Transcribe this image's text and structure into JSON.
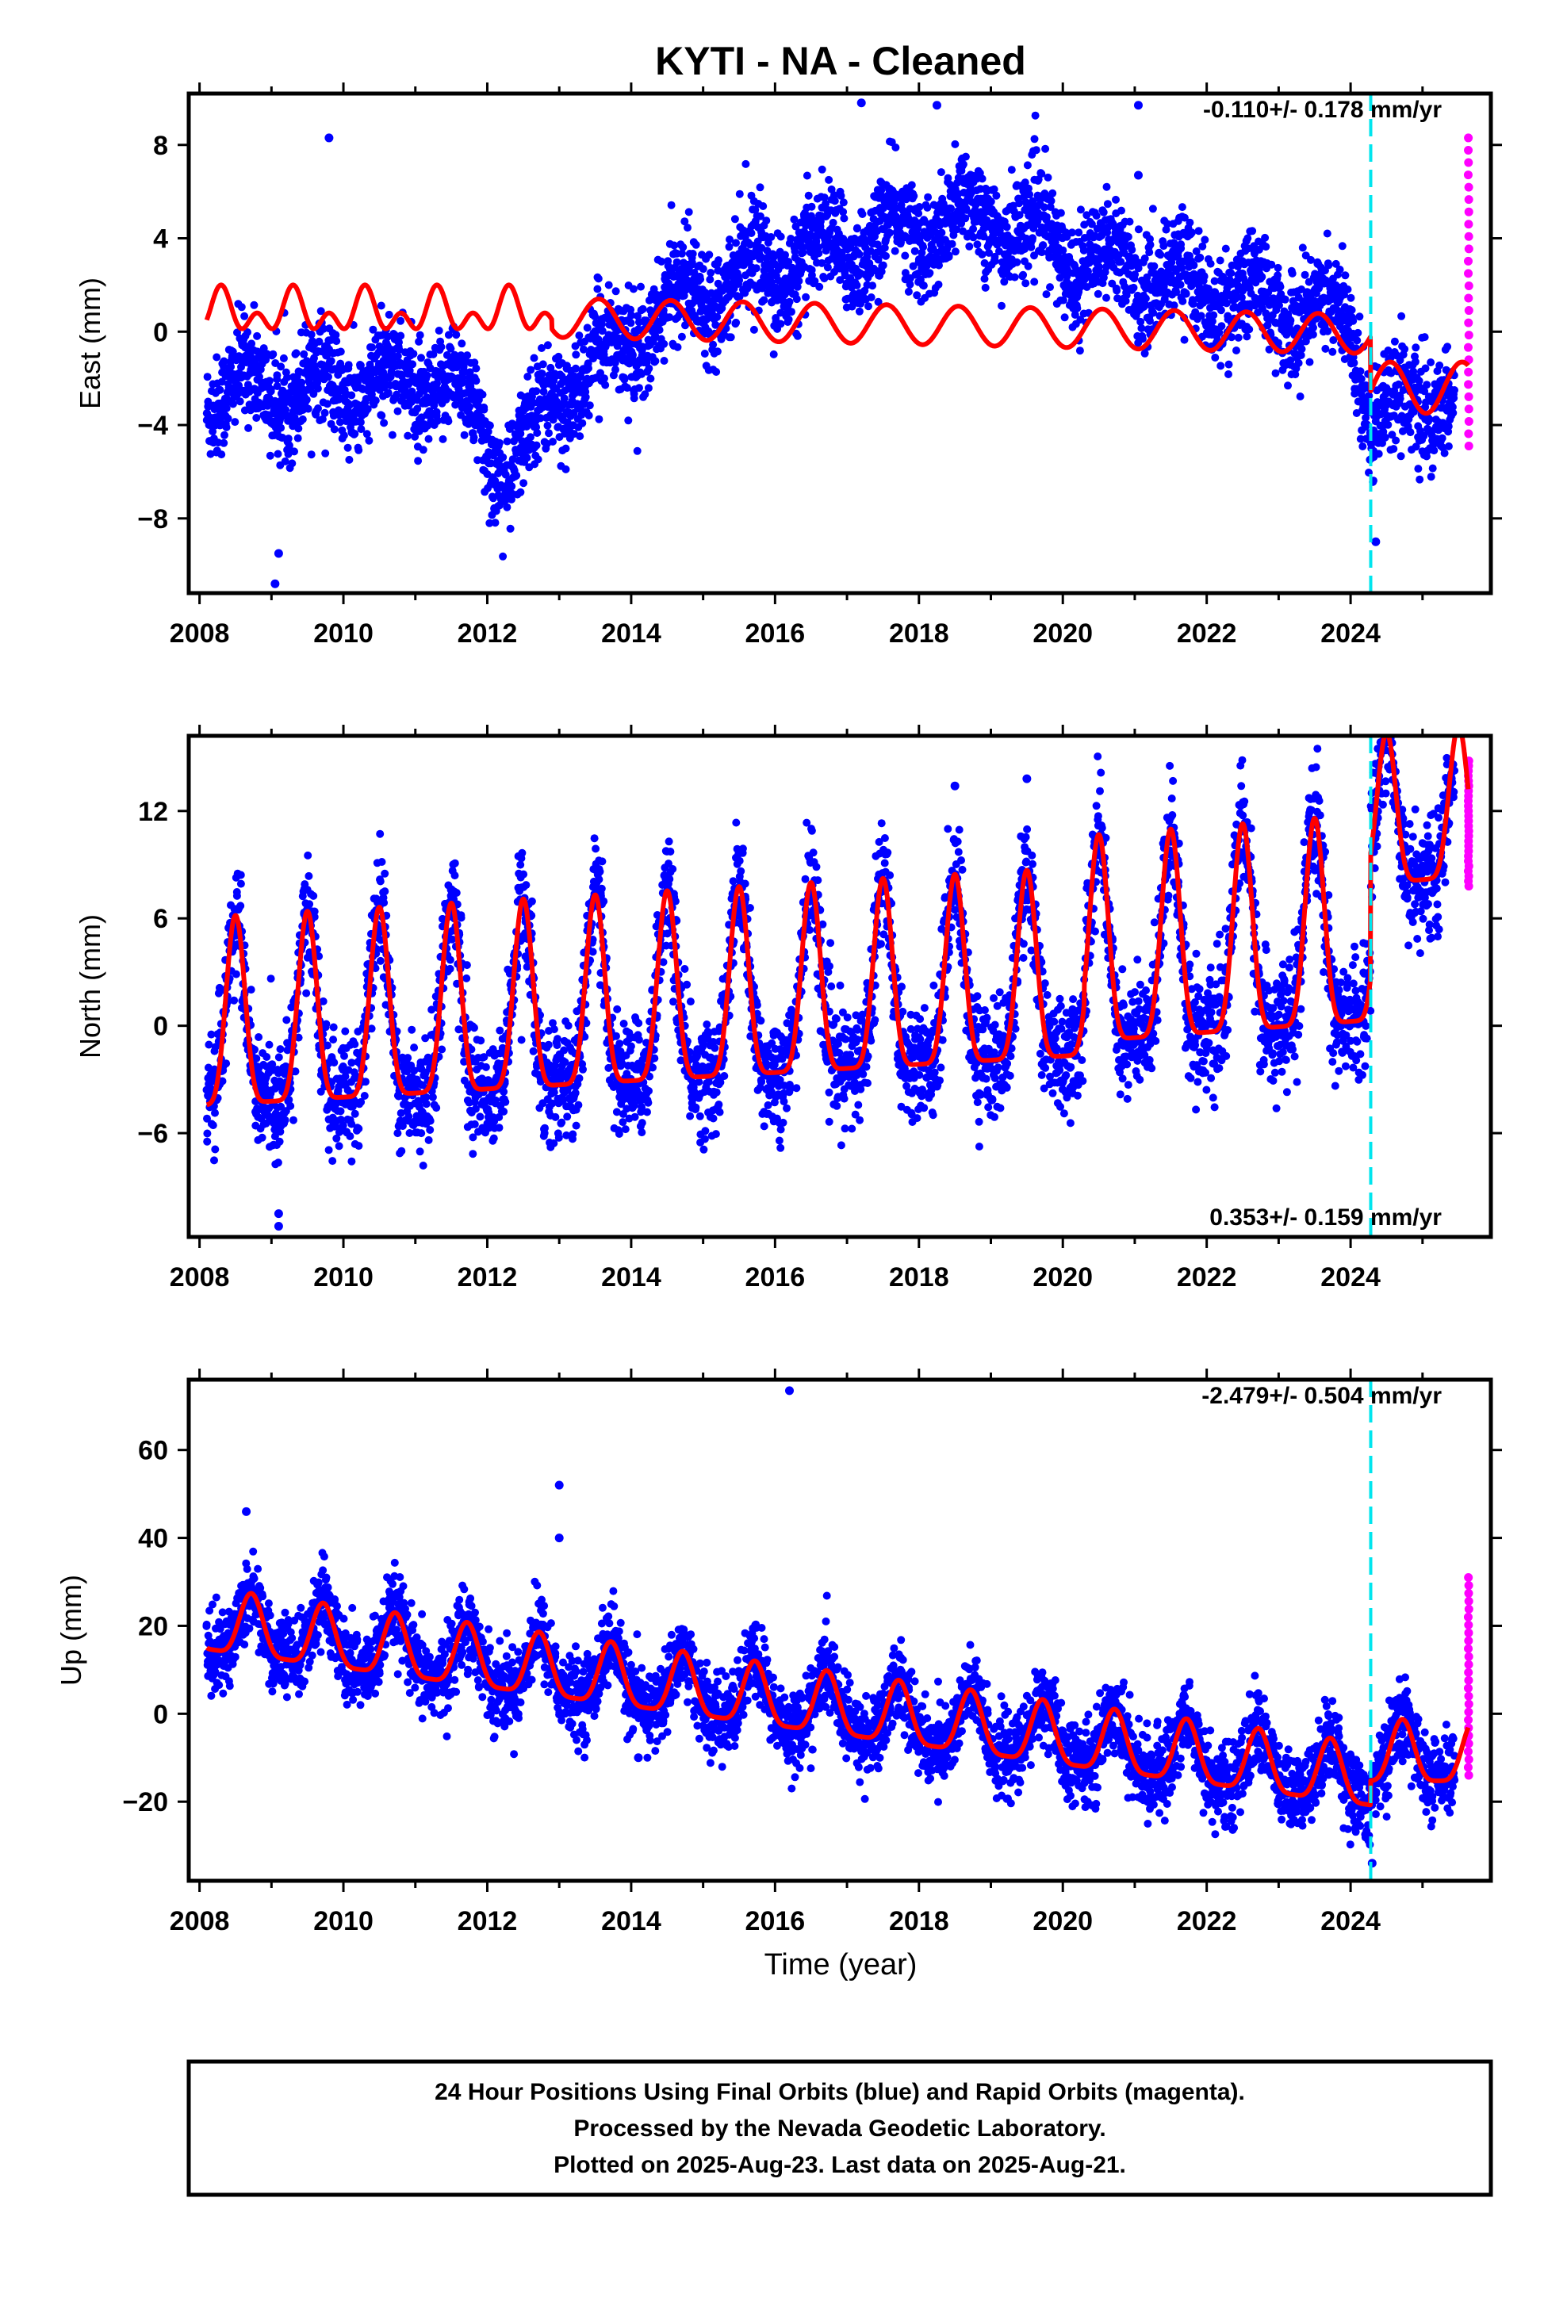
{
  "title": "KYTI  - NA - Cleaned",
  "xlabel": "Time (year)",
  "footer": {
    "line1": "24 Hour Positions Using Final Orbits (blue) and Rapid Orbits (magenta).",
    "line2": "Processed by the Nevada Geodetic Laboratory.",
    "line3": "Plotted on 2025-Aug-23. Last data on 2025-Aug-21."
  },
  "colors": {
    "final": "#0000ff",
    "rapid": "#ff00ff",
    "model": "#ff0000",
    "event": "#00e5ee"
  },
  "chart_data": [
    {
      "type": "scatter",
      "name": "east",
      "ylabel": "East (mm)",
      "rate": "-0.110+/- 0.178 mm/yr",
      "xlim": [
        2007.85,
        2025.95
      ],
      "ylim": [
        -11.2,
        10.2
      ],
      "xticks": [
        2008,
        2010,
        2012,
        2014,
        2016,
        2018,
        2020,
        2022,
        2024
      ],
      "yticks": [
        -8,
        -4,
        0,
        4,
        8
      ],
      "yticklabels": [
        "−8",
        "−4",
        "0",
        "4",
        "8"
      ],
      "event_year": 2024.28,
      "final_end": 2025.45,
      "last_data": 2025.64,
      "trend": [
        [
          2008.1,
          -2.5
        ],
        [
          2011.5,
          -2.2
        ],
        [
          2012.3,
          -6.0
        ],
        [
          2013.0,
          -2.5
        ],
        [
          2015.0,
          2.0
        ],
        [
          2017.0,
          3.7
        ],
        [
          2019.0,
          5.0
        ],
        [
          2020.0,
          3.5
        ],
        [
          2022.0,
          1.8
        ],
        [
          2024.0,
          0.5
        ],
        [
          2024.3,
          -3.6
        ],
        [
          2025.64,
          -2.5
        ]
      ],
      "model": {
        "seg1_end": 2012.9,
        "a1": 1.0,
        "b1": 0.8,
        "c1": -0.1,
        "seg2": [
          [
            2012.9,
            0.8
          ],
          [
            2024.28,
            0.1
          ]
        ],
        "a2": 1.2,
        "seg3": [
          [
            2024.28,
            -2.4
          ],
          [
            2025.64,
            -2.4
          ]
        ],
        "a3": 1.1,
        "phase": 0.3
      },
      "scatter_sigma": 1.1,
      "rapid_range": [
        -4.9,
        8.3
      ],
      "outliers": [
        [
          2009.8,
          8.3
        ],
        [
          2009.05,
          -10.8
        ],
        [
          2009.1,
          -9.5
        ],
        [
          2021.05,
          6.7
        ],
        [
          2021.05,
          9.7
        ],
        [
          2024.35,
          -9.0
        ],
        [
          2017.2,
          9.8
        ],
        [
          2018.25,
          9.7
        ]
      ]
    },
    {
      "type": "scatter",
      "name": "north",
      "ylabel": "North (mm)",
      "rate": "0.353+/- 0.159 mm/yr",
      "xlim": [
        2007.85,
        2025.95
      ],
      "ylim": [
        -11.8,
        16.2
      ],
      "xticks": [
        2008,
        2010,
        2012,
        2014,
        2016,
        2018,
        2020,
        2022,
        2024
      ],
      "yticks": [
        -6,
        0,
        6,
        12
      ],
      "yticklabels": [
        "−6",
        "0",
        "6",
        "12"
      ],
      "event_year": 2024.28,
      "final_end": 2025.45,
      "last_data": 2025.64,
      "trend": [
        [
          2008.1,
          -1.5
        ],
        [
          2020.0,
          2.2
        ],
        [
          2020.9,
          -3.0
        ],
        [
          2024.27,
          -0.5
        ],
        [
          2024.3,
          10.0
        ],
        [
          2025.64,
          10.5
        ]
      ],
      "model": {
        "seg1": [
          [
            2008.1,
            -1.8
          ],
          [
            2020.3,
            1.0
          ]
        ],
        "a1": 4.2,
        "seg2": [
          [
            2020.3,
            2.0
          ],
          [
            2024.27,
            3.2
          ]
        ],
        "a2": 4.6,
        "seg3": [
          [
            2024.28,
            10.0
          ],
          [
            2025.64,
            10.5
          ]
        ],
        "a3": 4.2,
        "phase": 0.5
      },
      "scatter_sigma": 1.6,
      "rapid_range": [
        7.8,
        14.8
      ],
      "outliers": [
        [
          2009.1,
          -10.5
        ],
        [
          2009.1,
          -11.2
        ],
        [
          2011.5,
          7.6
        ],
        [
          2018.5,
          13.4
        ],
        [
          2019.5,
          13.8
        ]
      ]
    },
    {
      "type": "scatter",
      "name": "up",
      "ylabel": "Up (mm)",
      "rate": "-2.479+/- 0.504 mm/yr",
      "xlim": [
        2007.85,
        2025.95
      ],
      "ylim": [
        -38,
        76
      ],
      "xticks": [
        2008,
        2010,
        2012,
        2014,
        2016,
        2018,
        2020,
        2022,
        2024
      ],
      "yticks": [
        -20,
        0,
        20,
        40,
        60
      ],
      "yticklabels": [
        "−20",
        "0",
        "20",
        "40",
        "60"
      ],
      "event_year": 2024.28,
      "final_end": 2025.45,
      "last_data": 2025.64,
      "trend": [
        [
          2008.1,
          20.0
        ],
        [
          2025.64,
          -12.5
        ]
      ],
      "model": {
        "seg1": [
          [
            2008.1,
            20.0
          ],
          [
            2024.28,
            -15.5
          ]
        ],
        "a1": 7.0,
        "seg2": [
          [
            2024.28,
            -10.0
          ],
          [
            2025.64,
            -10.0
          ]
        ],
        "a2": 7.0,
        "phase": 0.72
      },
      "scatter_sigma": 4.5,
      "rapid_range": [
        -14,
        31
      ],
      "outliers": [
        [
          2008.65,
          46
        ],
        [
          2013.0,
          52
        ],
        [
          2013.0,
          40
        ],
        [
          2016.2,
          73.5
        ],
        [
          2014.1,
          -10
        ],
        [
          2024.3,
          -34
        ]
      ]
    }
  ]
}
